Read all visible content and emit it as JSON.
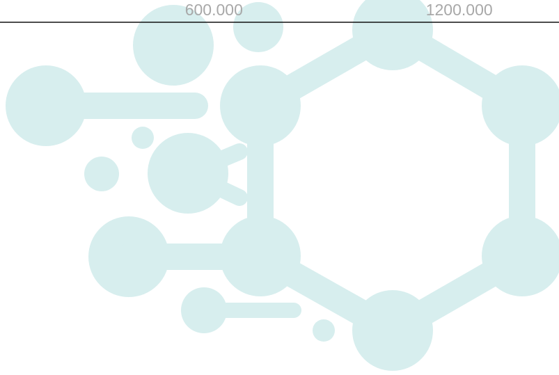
{
  "colors": {
    "background": "#ffffff",
    "watermark": "#d7eeee",
    "axis_line": "#111111",
    "tick_label": "#a8a8a8"
  },
  "watermark": {
    "icon": "molecule-network-icon"
  },
  "chart_data": {
    "type": "bar",
    "title": "",
    "xlabel": "",
    "ylabel": "",
    "x_ticks": [
      600,
      1200
    ],
    "x_tick_labels": [
      "600.000",
      "1200.000"
    ],
    "xlim": [
      0,
      1800
    ],
    "categories": [],
    "series": [],
    "grid": false,
    "legend": "none"
  }
}
